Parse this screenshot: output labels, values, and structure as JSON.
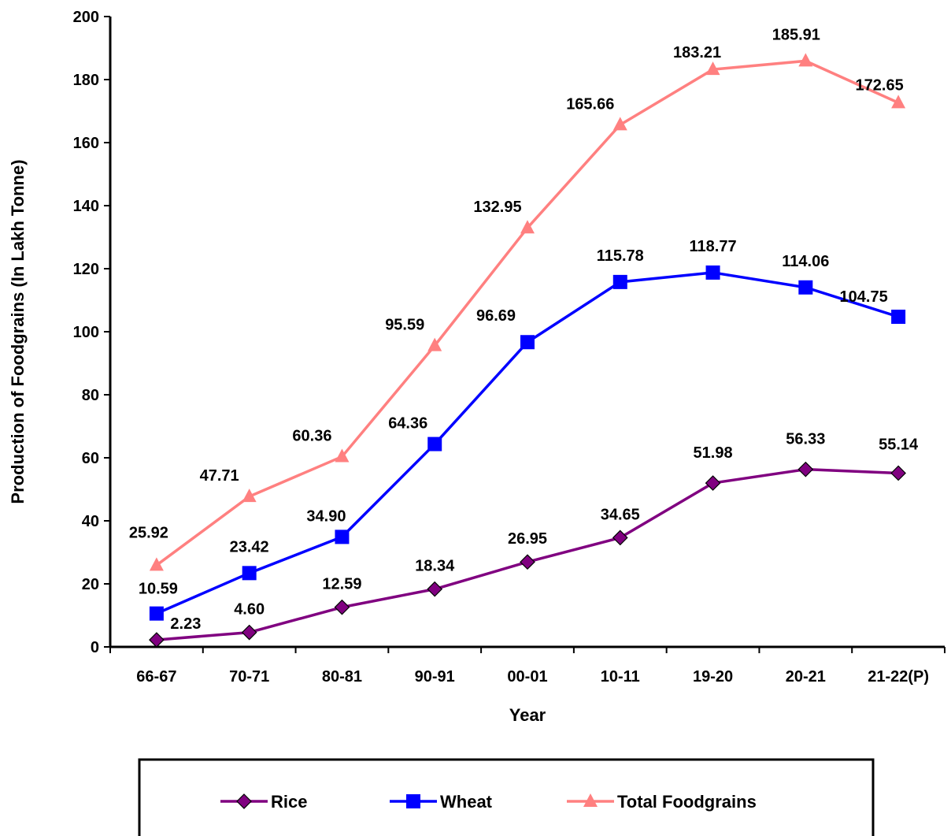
{
  "chart_data": {
    "type": "line",
    "xlabel": "Year",
    "ylabel": "Production of Foodgrains (In Lakh Tonne)",
    "ylim": [
      0,
      200
    ],
    "yticks": [
      0,
      20,
      40,
      60,
      80,
      100,
      120,
      140,
      160,
      180,
      200
    ],
    "grid": false,
    "legend_position": "bottom",
    "categories": [
      "66-67",
      "70-71",
      "80-81",
      "90-91",
      "00-01",
      "10-11",
      "19-20",
      "20-21",
      "21-22(P)"
    ],
    "series": [
      {
        "name": "Rice",
        "color": "#800080",
        "marker": "diamond",
        "values": [
          2.23,
          4.6,
          12.59,
          18.34,
          26.95,
          34.65,
          51.98,
          56.33,
          55.14
        ],
        "labels": [
          "2.23",
          "4.60",
          "12.59",
          "18.34",
          "26.95",
          "34.65",
          "51.98",
          "56.33",
          "55.14"
        ]
      },
      {
        "name": "Wheat",
        "color": "#0000FF",
        "marker": "square",
        "values": [
          10.59,
          23.42,
          34.9,
          64.36,
          96.69,
          115.78,
          118.77,
          114.06,
          104.75
        ],
        "labels": [
          "10.59",
          "23.42",
          "34.90",
          "64.36",
          "96.69",
          "115.78",
          "118.77",
          "114.06",
          "104.75"
        ]
      },
      {
        "name": "Total Foodgrains",
        "color": "#FF8080",
        "marker": "triangle",
        "values": [
          25.92,
          47.71,
          60.36,
          95.59,
          132.95,
          165.66,
          183.21,
          185.91,
          172.65
        ],
        "labels": [
          "25.92",
          "47.71",
          "60.36",
          "95.59",
          "132.95",
          "165.66",
          "183.21",
          "185.91",
          "172.65"
        ]
      }
    ]
  }
}
